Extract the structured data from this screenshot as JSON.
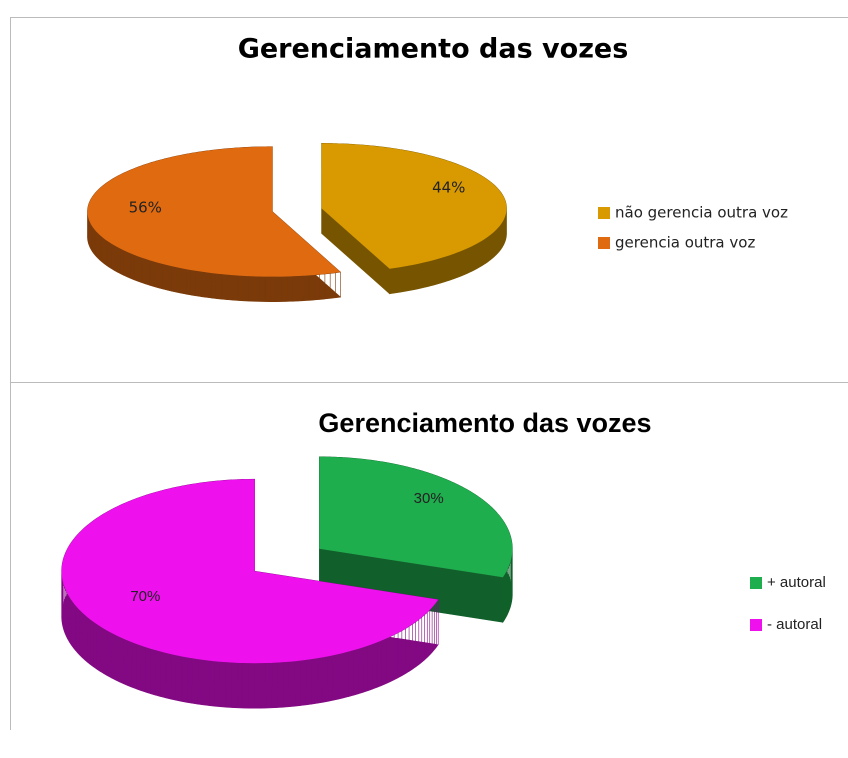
{
  "chart_data": [
    {
      "type": "pie",
      "title": "Gerenciamento das vozes",
      "categories": [
        "não gerencia outra voz",
        "gerencia outra voz"
      ],
      "values": [
        44,
        56
      ],
      "value_labels": [
        "44%",
        "56%"
      ],
      "colors": [
        "#d89a00",
        "#e06a10"
      ]
    },
    {
      "type": "pie",
      "title": "Gerenciamento das vozes",
      "categories": [
        "+ autoral",
        "- autoral"
      ],
      "values": [
        30,
        70
      ],
      "value_labels": [
        "30%",
        "70%"
      ],
      "colors": [
        "#1fae4e",
        "#ee11ee"
      ]
    }
  ]
}
